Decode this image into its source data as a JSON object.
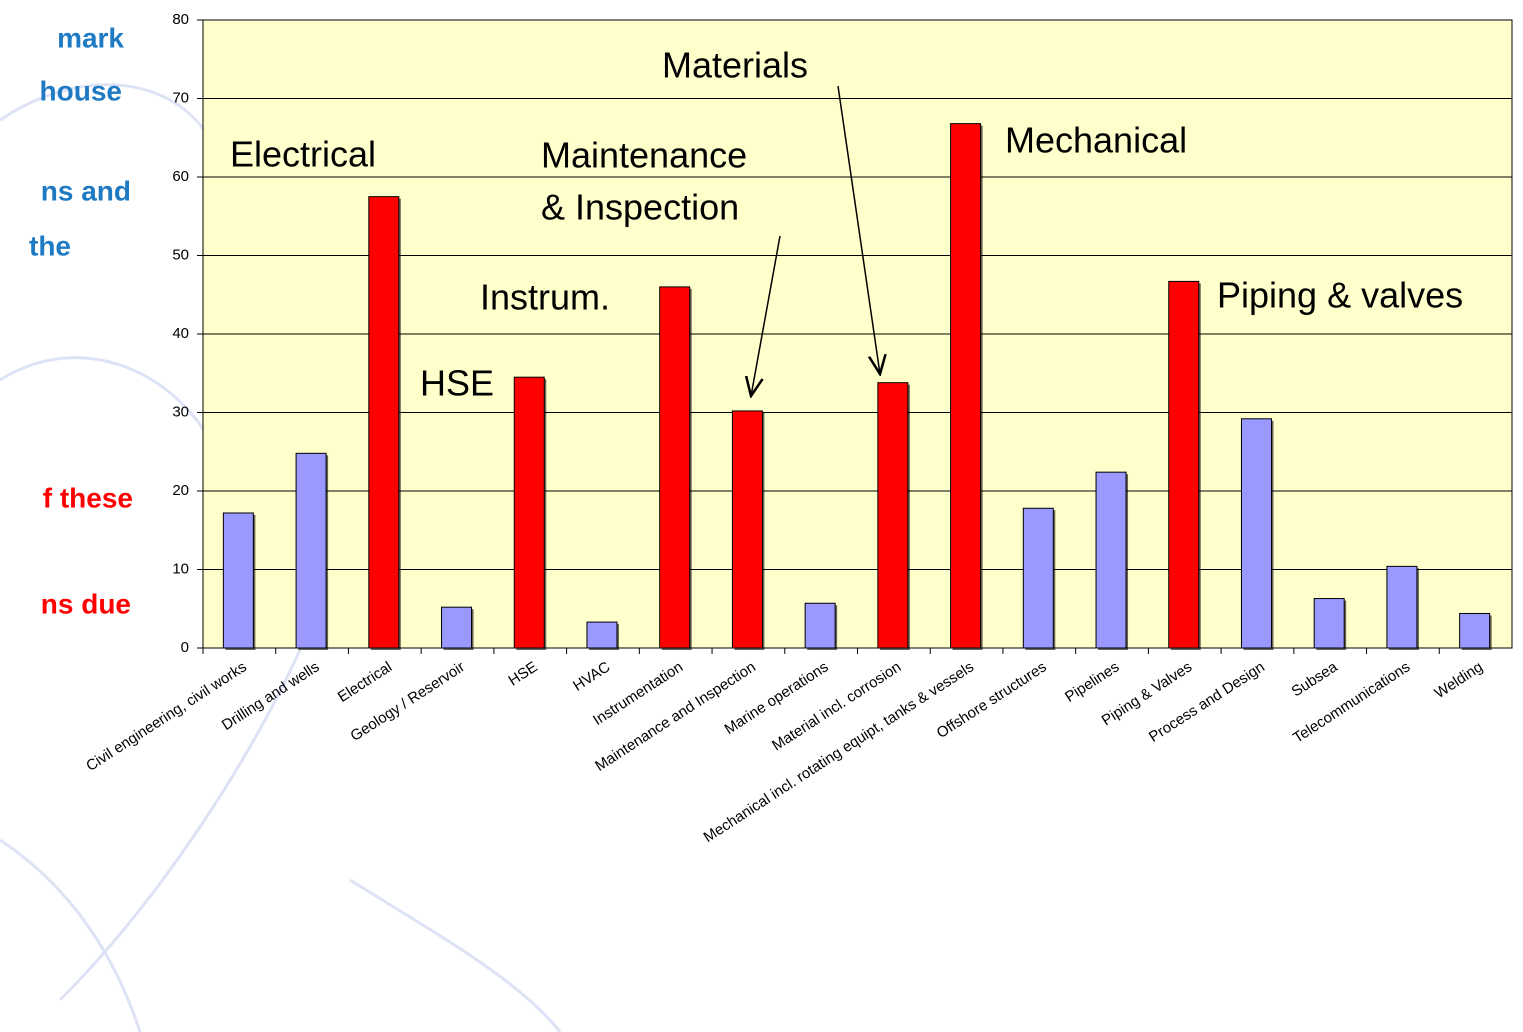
{
  "slide_text": {
    "blue": [
      "mark",
      "house",
      "ns and",
      "the"
    ],
    "red": [
      "f these",
      "ns due"
    ]
  },
  "chart_data": {
    "type": "bar",
    "categories": [
      "Civil engineering, civil works",
      "Drilling and wells",
      "Electrical",
      "Geology / Reservoir",
      "HSE",
      "HVAC",
      "Instrumentation",
      "Maintenance and Inspection",
      "Marine operations",
      "Material incl. corrosion",
      "Mechanical incl. rotating equipt, tanks & vessels",
      "Offshore structures",
      "Pipelines",
      "Piping & Valves",
      "Process and Design",
      "Subsea",
      "Telecommunications",
      "Welding"
    ],
    "values": [
      17.2,
      24.8,
      57.5,
      5.2,
      34.5,
      3.3,
      46,
      30.2,
      5.7,
      33.8,
      66.8,
      17.8,
      22.4,
      46.7,
      29.2,
      6.3,
      10.4,
      4.4
    ],
    "colors": [
      "#9999ff",
      "#9999ff",
      "#ff0000",
      "#9999ff",
      "#ff0000",
      "#9999ff",
      "#ff0000",
      "#ff0000",
      "#9999ff",
      "#ff0000",
      "#ff0000",
      "#9999ff",
      "#9999ff",
      "#ff0000",
      "#9999ff",
      "#9999ff",
      "#9999ff",
      "#9999ff"
    ],
    "ylim": [
      0,
      80
    ],
    "yticks": [
      0,
      10,
      20,
      30,
      40,
      50,
      60,
      70,
      80
    ],
    "grid": true,
    "annotations": [
      "Electrical",
      "HSE",
      "Instrum.",
      "Maintenance",
      "& Inspection",
      "Materials",
      "Mechanical",
      "Piping & valves"
    ]
  }
}
